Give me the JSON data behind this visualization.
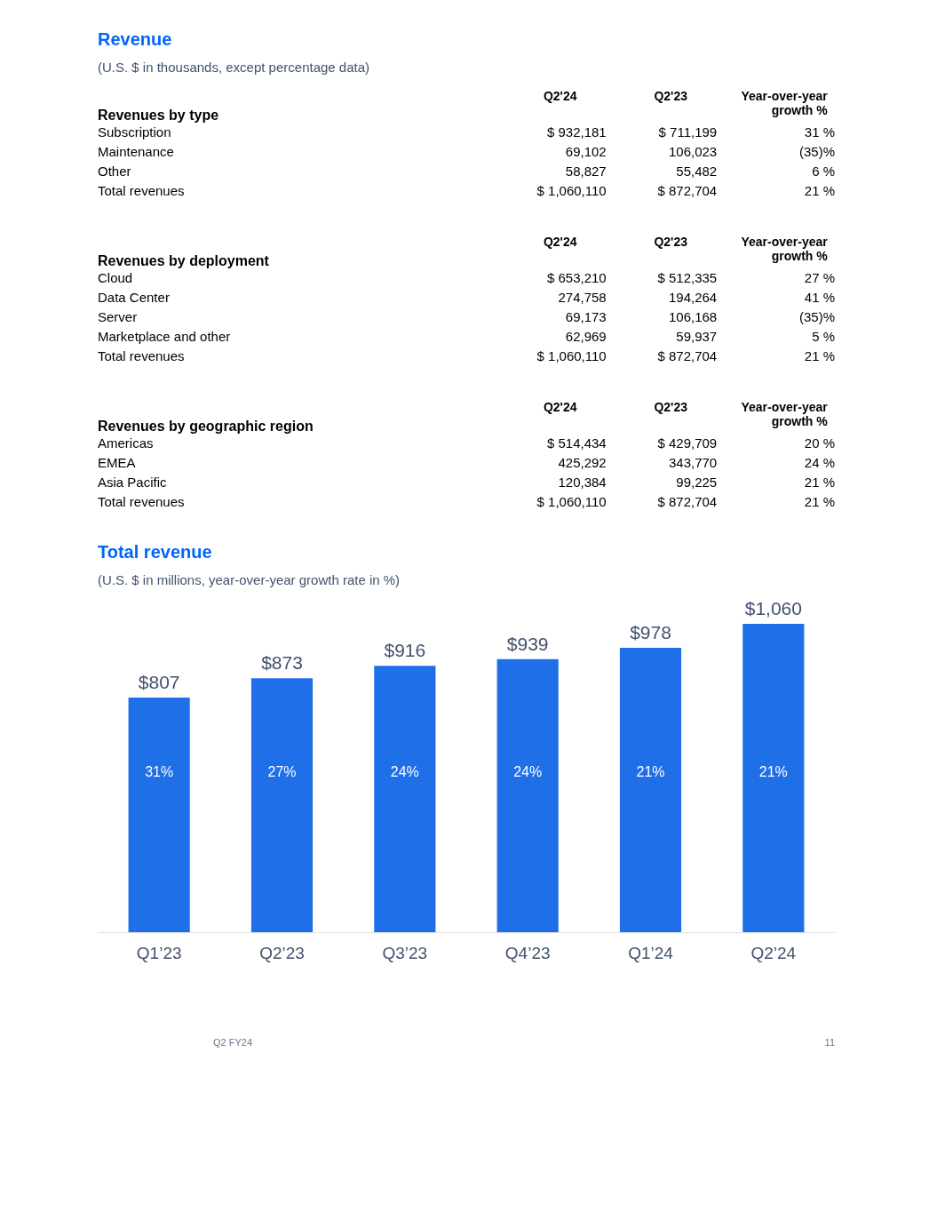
{
  "chart_data": [
    {
      "type": "other",
      "title": "Revenue",
      "subtitle": "(U.S. $ in thousands, except percentage data)",
      "ylabel": "Revenues by type",
      "categories": [
        "Subscription",
        "Maintenance",
        "Other",
        "Total revenues"
      ],
      "series": [
        {
          "name": "Q2'24",
          "values": [
            932181,
            69102,
            58827,
            1060110
          ],
          "value_labels": [
            "$ 932,181",
            "69,102",
            "58,827",
            "$ 1,060,110"
          ]
        },
        {
          "name": "Q2'23",
          "values": [
            711199,
            106023,
            55482,
            872704
          ],
          "value_labels": [
            "$ 711,199",
            "106,023",
            "55,482",
            "$ 872,704"
          ]
        },
        {
          "name": "Year-over-year growth %",
          "values": [
            31,
            -35,
            6,
            21
          ],
          "value_labels": [
            "31 %",
            "(35)%",
            "6 %",
            "21 %"
          ]
        }
      ]
    },
    {
      "type": "other",
      "ylabel": "Revenues by deployment",
      "categories": [
        "Cloud",
        "Data Center",
        "Server",
        "Marketplace and other",
        "Total revenues"
      ],
      "series": [
        {
          "name": "Q2'24",
          "values": [
            653210,
            274758,
            69173,
            62969,
            1060110
          ],
          "value_labels": [
            "$ 653,210",
            "274,758",
            "69,173",
            "62,969",
            "$ 1,060,110"
          ]
        },
        {
          "name": "Q2'23",
          "values": [
            512335,
            194264,
            106168,
            59937,
            872704
          ],
          "value_labels": [
            "$ 512,335",
            "194,264",
            "106,168",
            "59,937",
            "$ 872,704"
          ]
        },
        {
          "name": "Year-over-year growth %",
          "values": [
            27,
            41,
            -35,
            5,
            21
          ],
          "value_labels": [
            "27 %",
            "41 %",
            "(35)%",
            "5 %",
            "21 %"
          ]
        }
      ]
    },
    {
      "type": "other",
      "ylabel": "Revenues by geographic region",
      "categories": [
        "Americas",
        "EMEA",
        "Asia Pacific",
        "Total revenues"
      ],
      "series": [
        {
          "name": "Q2'24",
          "values": [
            514434,
            425292,
            120384,
            1060110
          ],
          "value_labels": [
            "$ 514,434",
            "425,292",
            "120,384",
            "$ 1,060,110"
          ]
        },
        {
          "name": "Q2'23",
          "values": [
            429709,
            343770,
            99225,
            872704
          ],
          "value_labels": [
            "$ 429,709",
            "343,770",
            "99,225",
            "$ 872,704"
          ]
        },
        {
          "name": "Year-over-year growth %",
          "values": [
            20,
            24,
            21,
            21
          ],
          "value_labels": [
            "20 %",
            "24 %",
            "21 %",
            "21 %"
          ]
        }
      ]
    },
    {
      "type": "bar",
      "title": "Total revenue",
      "subtitle": "(U.S. $ in millions, year-over-year growth rate in %)",
      "categories": [
        "Q1’23",
        "Q2’23",
        "Q3’23",
        "Q4’23",
        "Q1’24",
        "Q2’24"
      ],
      "values": [
        807,
        873,
        916,
        939,
        978,
        1060
      ],
      "value_labels": [
        "$807",
        "$873",
        "$916",
        "$939",
        "$978",
        "$1,060"
      ],
      "color": "#1f6fe8",
      "annotations": [
        "31%",
        "27%",
        "24%",
        "24%",
        "21%",
        "21%",
        "Q2 FY24",
        "11"
      ]
    }
  ]
}
